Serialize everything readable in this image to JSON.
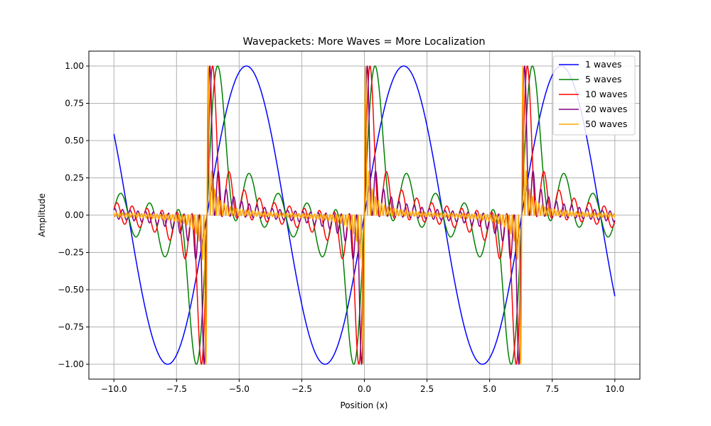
{
  "chart_data": {
    "type": "line",
    "title": "Wavepackets: More Waves = More Localization",
    "xlabel": "Position (x)",
    "ylabel": "Amplitude",
    "xlim": [
      -11,
      11
    ],
    "ylim": [
      -1.1,
      1.1
    ],
    "xticks": [
      -10,
      -7.5,
      -5,
      -2.5,
      0,
      2.5,
      5,
      7.5,
      10
    ],
    "xtick_labels": [
      "−10.0",
      "−7.5",
      "−5.0",
      "−2.5",
      "0.0",
      "2.5",
      "5.0",
      "7.5",
      "10.0"
    ],
    "yticks": [
      -1,
      -0.75,
      -0.5,
      -0.25,
      0,
      0.25,
      0.5,
      0.75,
      1
    ],
    "ytick_labels": [
      "−1.00",
      "−0.75",
      "−0.50",
      "−0.25",
      "0.00",
      "0.25",
      "0.50",
      "0.75",
      "1.00"
    ],
    "x_range": [
      -10,
      10
    ],
    "grid": true,
    "legend_position": "top-right",
    "series": [
      {
        "name": "1 waves",
        "waves": 1,
        "color": "#0000ff"
      },
      {
        "name": "5 waves",
        "waves": 5,
        "color": "#008000"
      },
      {
        "name": "10 waves",
        "waves": 10,
        "color": "#ff0000"
      },
      {
        "name": "20 waves",
        "waves": 20,
        "color": "#800080"
      },
      {
        "name": "50 waves",
        "waves": 50,
        "color": "#ffa500"
      }
    ]
  }
}
